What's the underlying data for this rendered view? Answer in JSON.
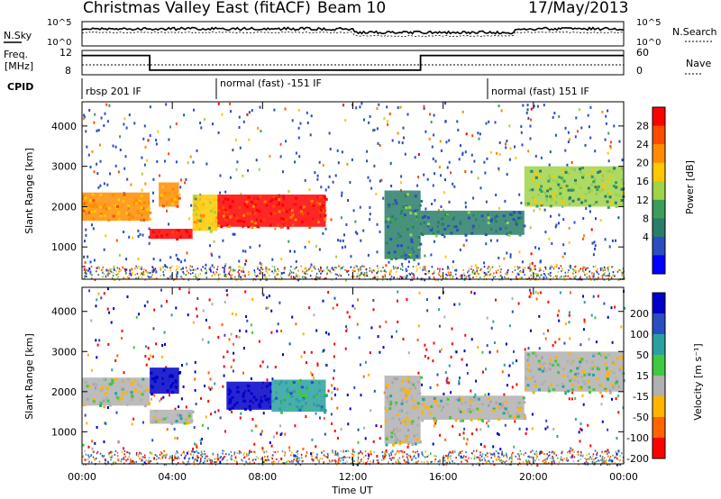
{
  "header": {
    "title": "Christmas Valley East (fitACF)",
    "beam": "Beam 10",
    "date": "17/May/2013"
  },
  "top_panels": {
    "nsky_label": "N.Sky",
    "nsky_ticks": [
      "10^5",
      "10^0"
    ],
    "nsearch_label": "N.Search",
    "nsearch_ticks": [
      "10^5",
      "10^0"
    ],
    "freq_label": "Freq.",
    "freq_unit": "[MHz]",
    "freq_ticks": [
      "12",
      "8"
    ],
    "nave_label": "Nave",
    "nave_ticks": [
      "60",
      "0"
    ],
    "cpid_label": "CPID",
    "cpid_segments": [
      "rbsp 201 IF",
      "normal (fast) -151 IF",
      "normal (fast) 151 IF"
    ]
  },
  "colorbars": {
    "power_label": "Power [dB]",
    "power_ticks": [
      "28",
      "24",
      "20",
      "16",
      "12",
      "8",
      "4"
    ],
    "power_colors": [
      "#ff0000",
      "#ff4b00",
      "#ff8c00",
      "#ffc800",
      "#9fd34a",
      "#3c9e5a",
      "#2a7d6a",
      "#2a4ec0",
      "#0000ff"
    ],
    "velocity_label": "Velocity [m s⁻¹]",
    "velocity_ticks": [
      "200",
      "100",
      "50",
      "15",
      "-15",
      "-50",
      "-100",
      "-200"
    ],
    "velocity_colors": [
      "#0000c8",
      "#2a4ec0",
      "#2aa0a0",
      "#40c840",
      "#b0b0b0",
      "#ffb400",
      "#ff6400",
      "#ff0000"
    ]
  },
  "chart_data": {
    "type": "heatmap",
    "xlabel": "Time UT",
    "ylabel": "Slant Range [km]",
    "x_tick_labels": [
      "00:00",
      "04:00",
      "08:00",
      "12:00",
      "16:00",
      "20:00",
      "00:00"
    ],
    "y_tick_labels": [
      "1000",
      "2000",
      "3000",
      "4000"
    ],
    "xlim": [
      0,
      24
    ],
    "ylim": [
      200,
      4600
    ],
    "panels": [
      {
        "quantity": "Power",
        "unit": "dB",
        "regions": [
          {
            "t": [
              0,
              3.0
            ],
            "r": [
              1650,
              2350
            ],
            "value": 20
          },
          {
            "t": [
              3.0,
              4.9
            ],
            "r": [
              1200,
              1450
            ],
            "value": 28
          },
          {
            "t": [
              3.4,
              4.3
            ],
            "r": [
              2000,
              2600
            ],
            "value": 20
          },
          {
            "t": [
              4.9,
              6.0
            ],
            "r": [
              1400,
              2300
            ],
            "value": 16
          },
          {
            "t": [
              6.0,
              10.8
            ],
            "r": [
              1500,
              2300
            ],
            "value": 26
          },
          {
            "t": [
              13.4,
              15.0
            ],
            "r": [
              700,
              2400
            ],
            "value": 8
          },
          {
            "t": [
              15.0,
              19.6
            ],
            "r": [
              1300,
              1900
            ],
            "value": 8
          },
          {
            "t": [
              19.6,
              24.0
            ],
            "r": [
              2000,
              3000
            ],
            "value": 12
          }
        ]
      },
      {
        "quantity": "Velocity",
        "unit": "m s-1",
        "regions": [
          {
            "t": [
              0,
              3.0
            ],
            "r": [
              1650,
              2350
            ],
            "value": 0
          },
          {
            "t": [
              3.0,
              4.3
            ],
            "r": [
              1950,
              2600
            ],
            "value": 200
          },
          {
            "t": [
              3.0,
              4.9
            ],
            "r": [
              1200,
              1550
            ],
            "value": 0
          },
          {
            "t": [
              6.4,
              8.4
            ],
            "r": [
              1550,
              2250
            ],
            "value": 200
          },
          {
            "t": [
              8.4,
              10.8
            ],
            "r": [
              1500,
              2300
            ],
            "value": 50
          },
          {
            "t": [
              13.4,
              15.0
            ],
            "r": [
              700,
              2400
            ],
            "value": 0
          },
          {
            "t": [
              15.0,
              19.6
            ],
            "r": [
              1300,
              1900
            ],
            "value": 0
          },
          {
            "t": [
              19.6,
              24.0
            ],
            "r": [
              2000,
              3000
            ],
            "value": 0
          }
        ]
      }
    ],
    "frequency_MHz": [
      {
        "t": [
          0,
          3.0
        ],
        "value": 11.5
      },
      {
        "t": [
          3.0,
          15.0
        ],
        "value": 8.4
      },
      {
        "t": [
          15.0,
          24.0
        ],
        "value": 11.5
      }
    ]
  }
}
